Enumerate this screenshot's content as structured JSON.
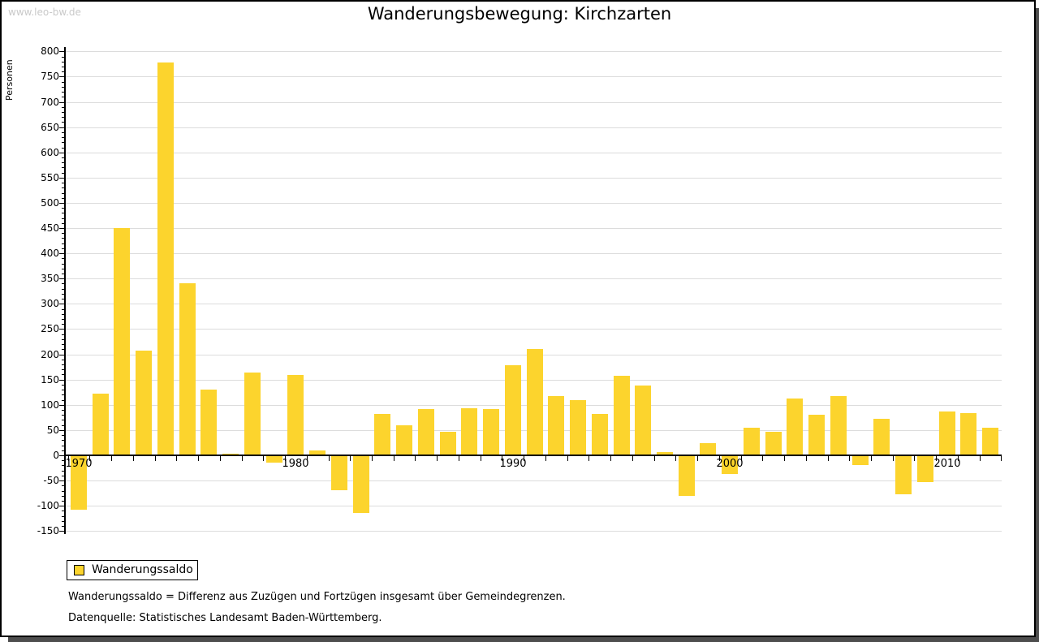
{
  "watermark": "www.leo-bw.de",
  "header": {
    "title": "Wanderungsbewegung: Kirchzarten"
  },
  "chart_data": {
    "type": "bar",
    "title": "Wanderungsbewegung: Kirchzarten",
    "xlabel": "",
    "ylabel": "Personen",
    "ylim": [
      -150,
      800
    ],
    "y_tick_step": 50,
    "y_tick_labels": [
      "800",
      "750",
      "700",
      "650",
      "600",
      "550",
      "500",
      "450",
      "400",
      "350",
      "300",
      "250",
      "200",
      "150",
      "100",
      "50",
      "0",
      "-50",
      "-100",
      "-150"
    ],
    "x_labeled_ticks": [
      "1970",
      "1980",
      "1990",
      "2000",
      "2010"
    ],
    "grid": "horizontal",
    "legend_position": "bottom-left",
    "bar_color": "#FCD42D",
    "categories": [
      1970,
      1971,
      1972,
      1973,
      1974,
      1975,
      1976,
      1977,
      1978,
      1979,
      1980,
      1981,
      1982,
      1983,
      1984,
      1985,
      1986,
      1987,
      1988,
      1989,
      1990,
      1991,
      1992,
      1993,
      1994,
      1995,
      1996,
      1997,
      1998,
      1999,
      2000,
      2001,
      2002,
      2003,
      2004,
      2005,
      2006,
      2007,
      2008,
      2009,
      2010,
      2011,
      2012
    ],
    "series": [
      {
        "name": "Wanderungssaldo",
        "values": [
          -106,
          122,
          450,
          207,
          778,
          341,
          130,
          3,
          164,
          -13,
          159,
          9,
          -68,
          -113,
          82,
          60,
          92,
          46,
          94,
          92,
          179,
          210,
          117,
          109,
          82,
          157,
          138,
          7,
          -79,
          24,
          -35,
          55,
          47,
          113,
          81,
          117,
          -17,
          72,
          -76,
          -51,
          87,
          84,
          55
        ]
      }
    ]
  },
  "legend": {
    "label": "Wanderungssaldo",
    "swatch_color": "#FCD42D"
  },
  "footnotes": {
    "definition": "Wanderungssaldo = Differenz aus Zuzügen und Fortzügen insgesamt über Gemeindegrenzen.",
    "source": "Datenquelle: Statistisches Landesamt Baden-Württemberg."
  }
}
